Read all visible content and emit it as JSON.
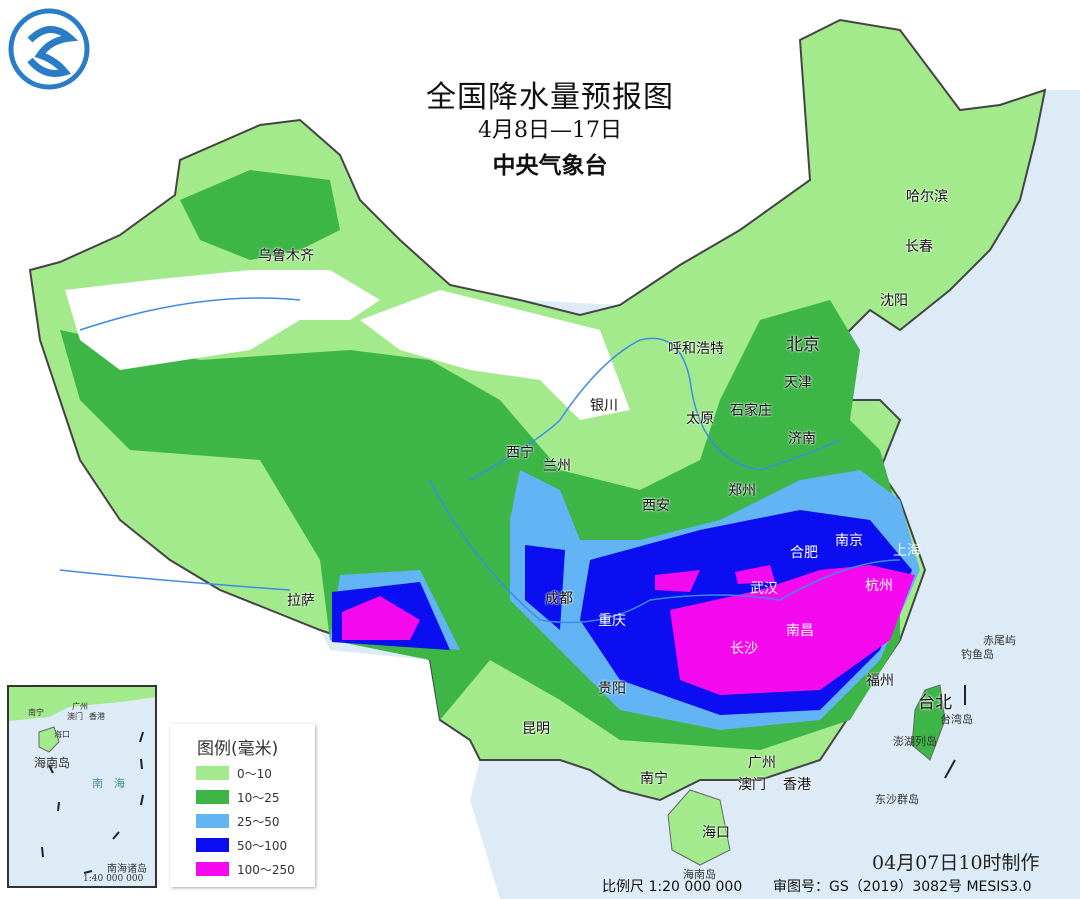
{
  "title": "全国降水量预报图",
  "period": "4月8日—17日",
  "issuer": "中央气象台",
  "logo": "中央气象台 logo",
  "legend": {
    "title": "图例(毫米)",
    "items": [
      {
        "label": "0～10",
        "color": "#a3ea8c"
      },
      {
        "label": "10～25",
        "color": "#3db547"
      },
      {
        "label": "25～50",
        "color": "#63b4f5"
      },
      {
        "label": "50～100",
        "color": "#0a0ef0"
      },
      {
        "label": "100～250",
        "color": "#f50af0"
      }
    ]
  },
  "cities": {
    "urumqi": "乌鲁木齐",
    "harbin": "哈尔滨",
    "changchun": "长春",
    "shenyang": "沈阳",
    "hohhot": "呼和浩特",
    "beijing": "北京",
    "tianjin": "天津",
    "shijiazhuang": "石家庄",
    "taiyuan": "太原",
    "jinan": "济南",
    "yinchuan": "银川",
    "xining": "西宁",
    "lanzhou": "兰州",
    "xian": "西安",
    "zhengzhou": "郑州",
    "hefei": "合肥",
    "nanjing": "南京",
    "shanghai": "上海",
    "wuhan": "武汉",
    "hangzhou": "杭州",
    "chengdu": "成都",
    "chongqing": "重庆",
    "changsha": "长沙",
    "nanchang": "南昌",
    "fuzhou": "福州",
    "taipei": "台北",
    "lhasa": "拉萨",
    "guiyang": "贵阳",
    "kunming": "昆明",
    "nanning": "南宁",
    "guangzhou": "广州",
    "macau": "澳门",
    "hongkong": "香港",
    "haikou": "海口"
  },
  "islands": {
    "chiwei": "赤尾屿",
    "diaoyu": "钓鱼岛",
    "taiwan": "台湾岛",
    "penghu": "澎湖列岛",
    "dongsha": "东沙群岛",
    "hainan": "海南岛"
  },
  "inset": {
    "title": "南海诸岛",
    "scale": "1:40 000 000",
    "hainan": "海南岛",
    "sea": "南　海",
    "cities": {
      "nanning": "南宁",
      "guangzhou": "广州",
      "macau": "澳门",
      "hongkong": "香港",
      "haikou": "海口"
    }
  },
  "footer": {
    "made_time": "04月07日10时制作",
    "scale": "比例尺 1:20 000 000",
    "approval": "审图号：GS（2019）3082号 MESIS3.0"
  }
}
